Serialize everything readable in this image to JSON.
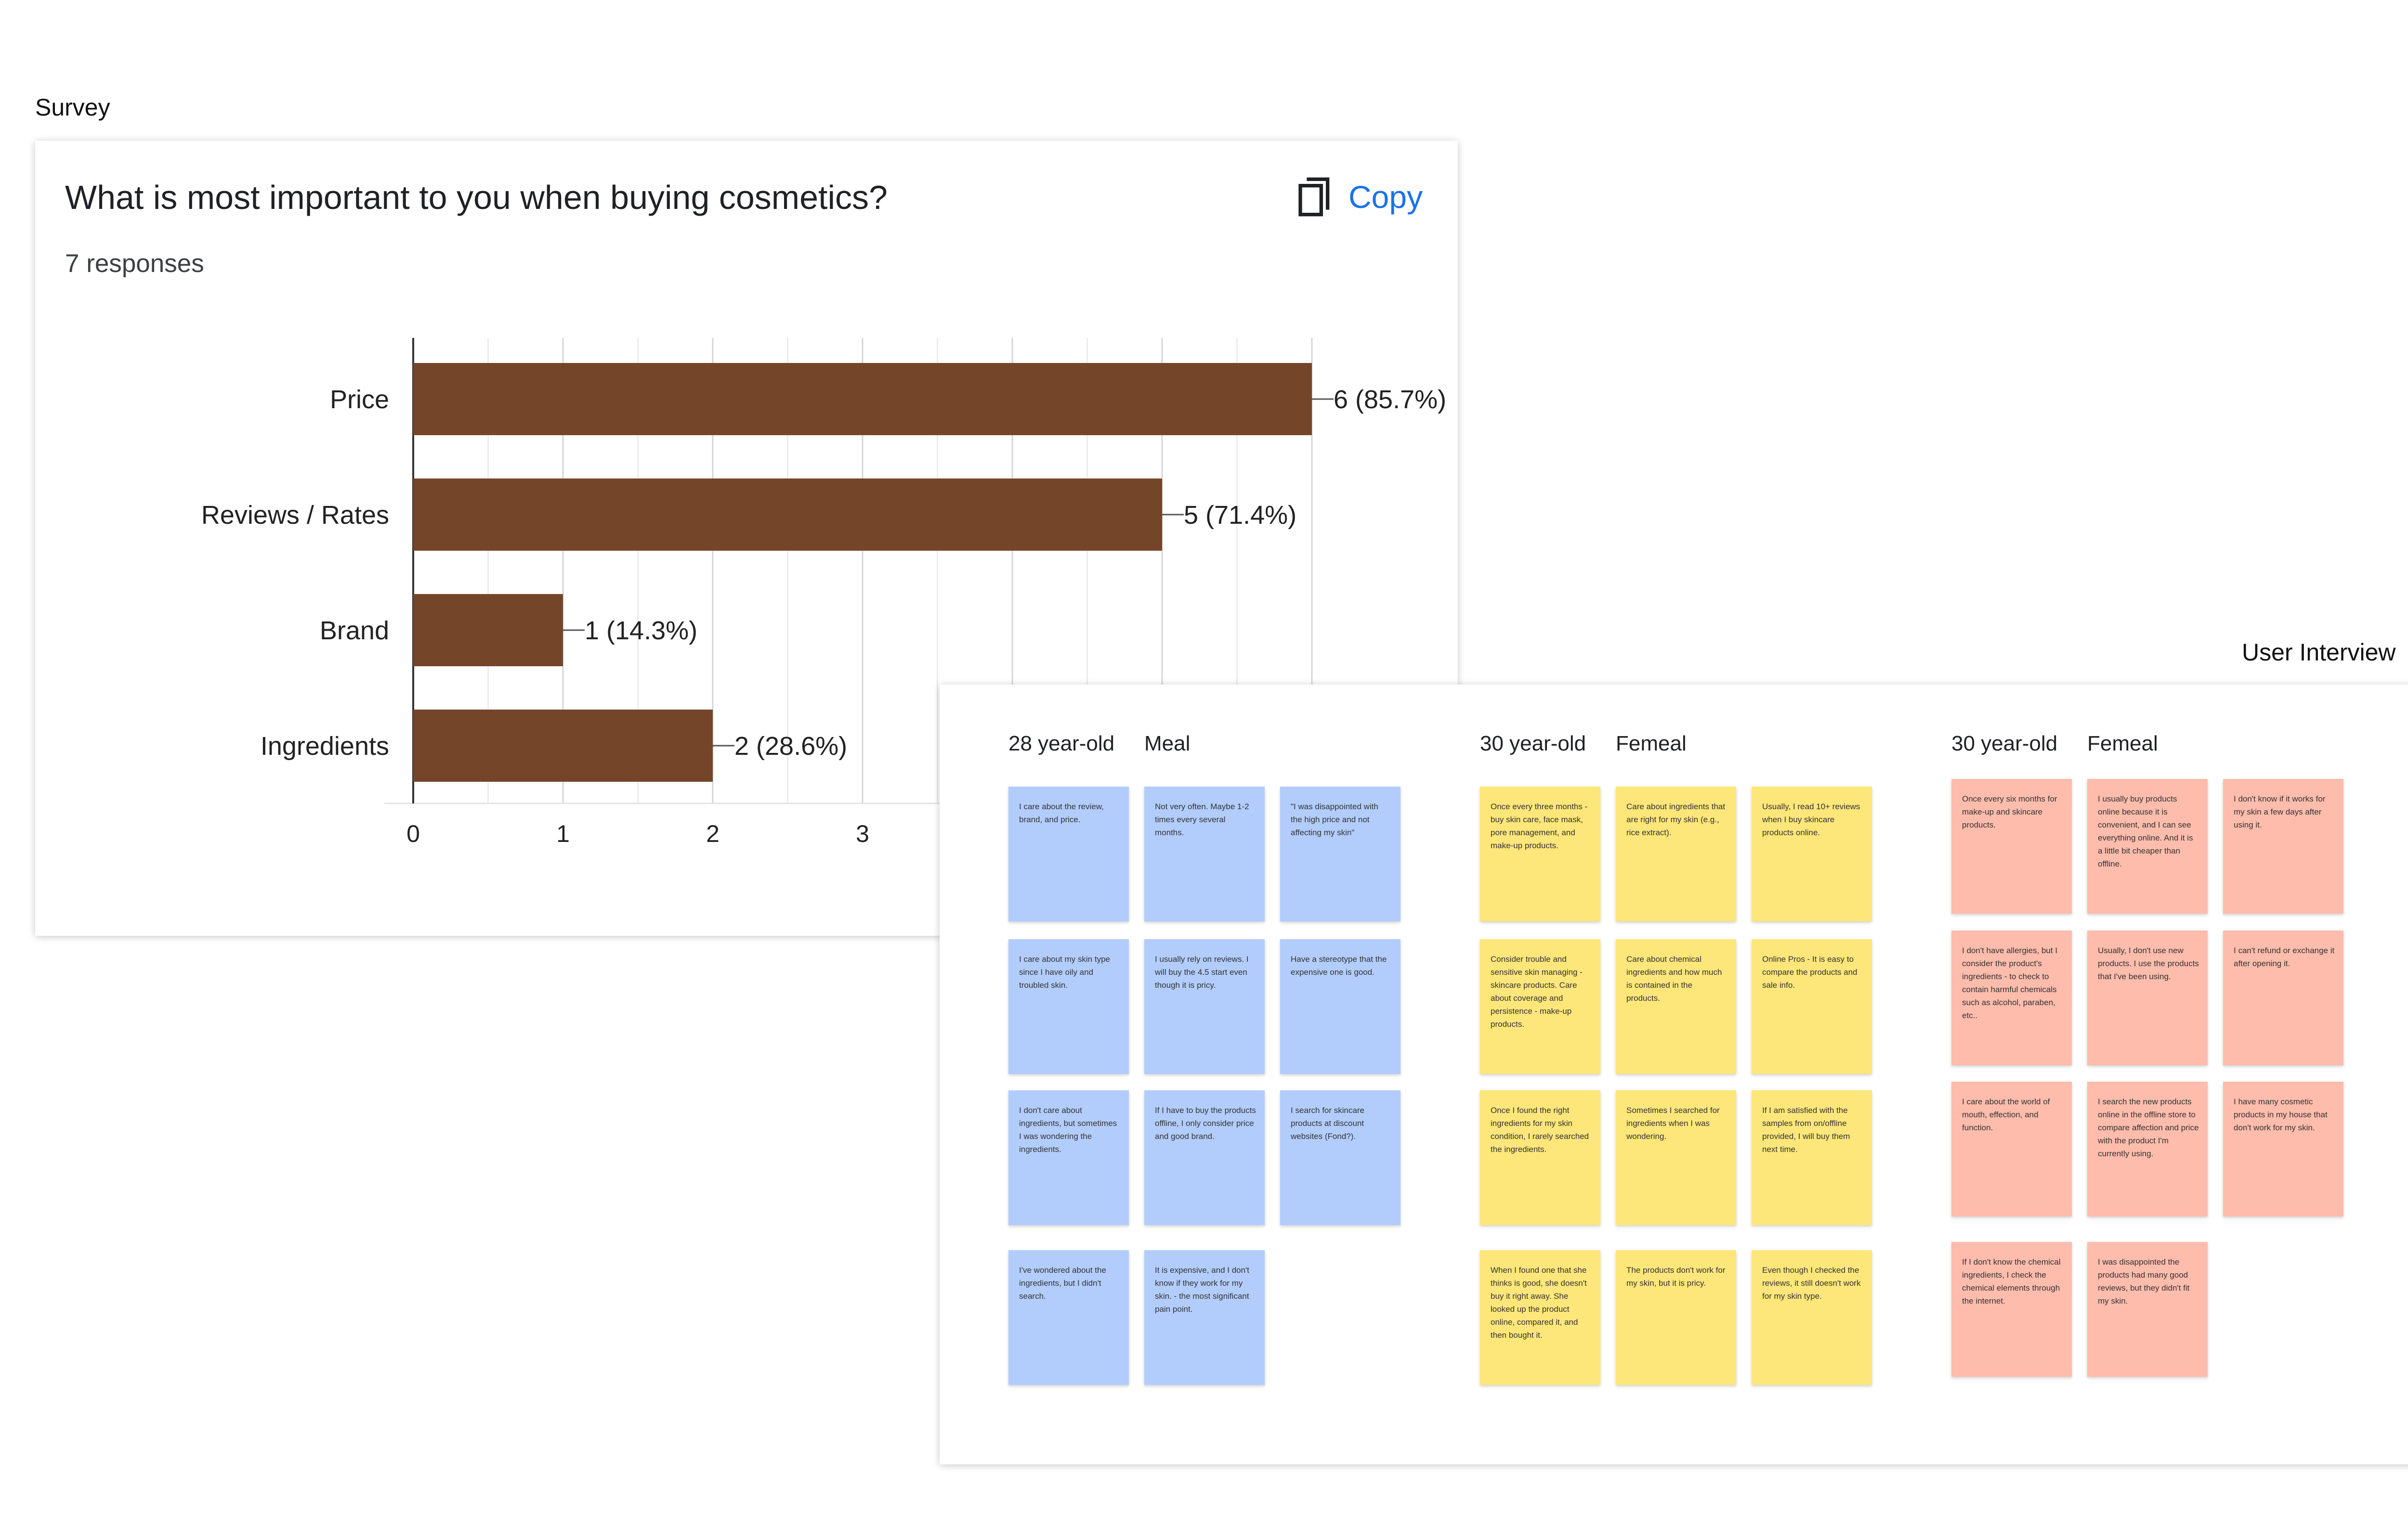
{
  "labels": {
    "survey": "Survey",
    "user_interview": "User Interview"
  },
  "survey": {
    "question": "What is most important to you when buying cosmetics?",
    "responses": "7 responses",
    "copy_label": "Copy",
    "copy_icon": "copy-icon",
    "accent": "#1a73e8"
  },
  "chart_data": {
    "type": "bar",
    "orientation": "horizontal",
    "categories": [
      "Price",
      "Reviews / Rates",
      "Brand",
      "Ingredients"
    ],
    "values": [
      6,
      5,
      1,
      2
    ],
    "value_labels": [
      "6 (85.7%)",
      "5 (71.4%)",
      "1 (14.3%)",
      "2 (28.6%)"
    ],
    "x_ticks": [
      "0",
      "1",
      "2",
      "3"
    ],
    "xlim": [
      0,
      6
    ],
    "grid": true,
    "bar_color": "#75452a"
  },
  "interview": {
    "groups": [
      {
        "age": "28 year-old",
        "gender": "Meal",
        "color": "#b2cdfc",
        "notes": [
          [
            "I care about the review, brand, and price.",
            "Not very often. Maybe 1-2 times every several months.",
            "\"I was disappointed with the high price and not affecting my skin\""
          ],
          [
            "I care about my skin type since I have oily and troubled skin.",
            "I usually rely on reviews. I will buy the 4.5 start even though it is pricy.",
            "Have a stereotype that the expensive one is good."
          ],
          [
            "I don't care about ingredients, but sometimes I was wondering the ingredients.",
            "If I have to buy the products offline, I only consider price and good brand.",
            "I search for skincare products at discount websites (Fond?)."
          ],
          [
            "I've wondered about the ingredients, but I didn't search.",
            "It is expensive, and I don't know if they work for my skin. - the most significant pain point."
          ]
        ]
      },
      {
        "age": "30 year-old",
        "gender": "Femeal",
        "color": "#fde67a",
        "notes": [
          [
            "Once every three months - buy skin care, face mask, pore management, and make-up products.",
            "Care about ingredients that are right for my skin (e.g., rice extract).",
            "Usually, I read 10+ reviews when I buy skincare products online."
          ],
          [
            "Consider trouble and sensitive skin managing - skincare products. Care about coverage and persistence - make-up products.",
            "Care about chemical ingredients and how much is contained in the products.",
            "Online Pros - It is easy to compare the products and sale info."
          ],
          [
            "Once I found the right ingredients for my skin condition, I rarely searched the ingredients.",
            "Sometimes I searched for ingredients when I was wondering.",
            "If I am satisfied with the samples from on/offline provided, I will buy them next time."
          ],
          [
            "When I found one that she thinks is good, she doesn't buy it right away. She looked up the product online, compared it, and then bought it.",
            "The products don't work for my skin, but it is pricy.",
            "Even though I checked the reviews, it still doesn't work for my skin type."
          ]
        ]
      },
      {
        "age": "30 year-old",
        "gender": "Femeal",
        "color": "#fdbcac",
        "notes": [
          [
            "Once every six months for make-up and skincare products.",
            "I usually buy products online because it is convenient, and I can see everything online. And it is a little bit cheaper than offline.",
            "I don't know if it works for my skin a few days after using it."
          ],
          [
            "I don't have allergies, but I consider the product's ingredients - to check to contain harmful chemicals such as alcohol, paraben, etc..",
            "Usually, I don't use new products. I use the products that I've been using.",
            "I can't refund or exchange it after opening it."
          ],
          [
            "I care about the world of mouth, effection, and function.",
            "I search the new products online in the offline store to compare affection and price with the product I'm currently using.",
            "I have many cosmetic products in my house that don't work for my skin."
          ],
          [
            "If I don't know the chemical ingredients, I check the chemical elements through the internet.",
            "I was disappointed the products had many good reviews, but they didn't fit my skin."
          ]
        ]
      }
    ]
  }
}
